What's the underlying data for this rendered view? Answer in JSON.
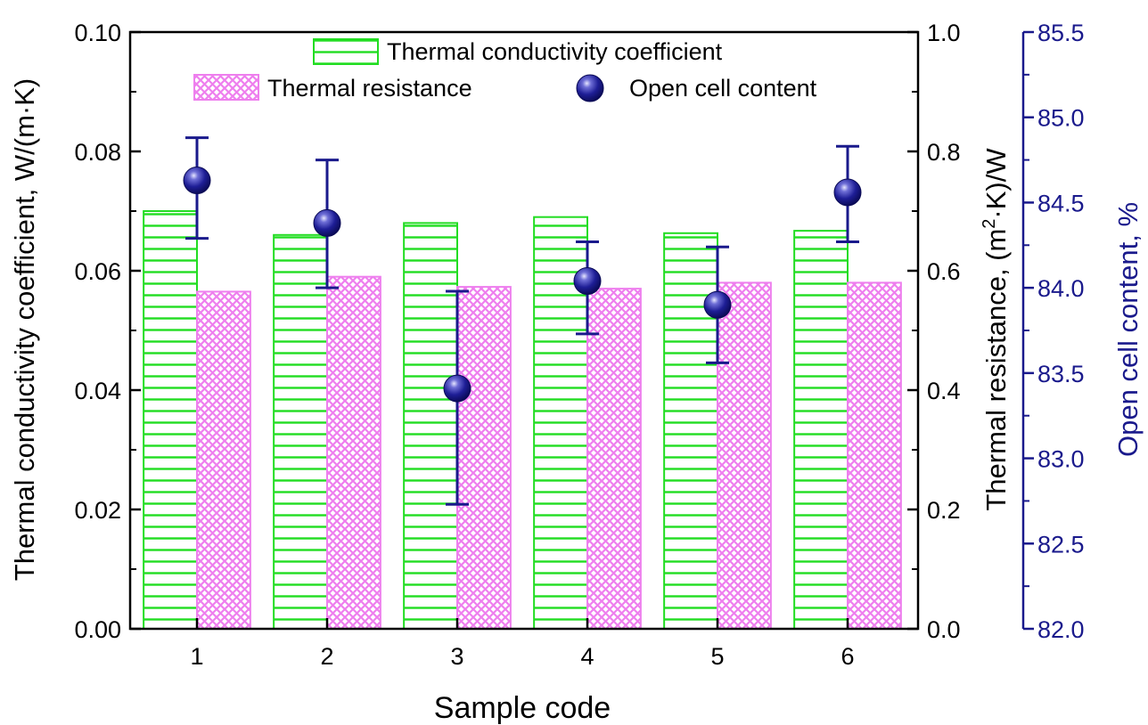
{
  "chart_data": {
    "type": "bar",
    "xlabel": "Sample code",
    "ylabel_left": "Thermal conductivity coefficient, W/(m·K)",
    "ylabel_right1": {
      "pre": "Thermal resistance,  (m",
      "sup": "2",
      "post": "·K)/W"
    },
    "ylabel_right2": "Open cell content, %",
    "categories": [
      "1",
      "2",
      "3",
      "4",
      "5",
      "6"
    ],
    "ylim_left": [
      0,
      0.1
    ],
    "ylim_right1": [
      0,
      1.0
    ],
    "ylim_right2": [
      82.0,
      85.5
    ],
    "ticks_left": [
      "0.00",
      "0.02",
      "0.04",
      "0.06",
      "0.08",
      "0.10"
    ],
    "ticks_right1": [
      "0.0",
      "0.2",
      "0.4",
      "0.6",
      "0.8",
      "1.0"
    ],
    "ticks_right2": [
      "82.0",
      "82.5",
      "83.0",
      "83.5",
      "84.0",
      "84.5",
      "85.0",
      "85.5"
    ],
    "series": [
      {
        "name": "Thermal conductivity coefficient",
        "kind": "bar",
        "axis": "left",
        "color": "#22dd22",
        "values": [
          0.07,
          0.066,
          0.068,
          0.069,
          0.0663,
          0.0667
        ]
      },
      {
        "name": "Thermal resistance",
        "kind": "bar",
        "axis": "right1",
        "color": "#ee7fee",
        "values": [
          0.565,
          0.59,
          0.573,
          0.57,
          0.58,
          0.58
        ]
      },
      {
        "name": "Open cell content",
        "kind": "scatter",
        "axis": "right2",
        "color": "#1a1a8c",
        "values": [
          84.63,
          84.38,
          83.41,
          84.04,
          83.9,
          84.56
        ],
        "err_low": [
          84.29,
          84.0,
          82.73,
          83.73,
          83.56,
          84.27
        ],
        "err_high": [
          84.88,
          84.75,
          83.98,
          84.27,
          84.24,
          84.83
        ]
      }
    ],
    "legend": {
      "placement": "top"
    },
    "grid": false
  }
}
